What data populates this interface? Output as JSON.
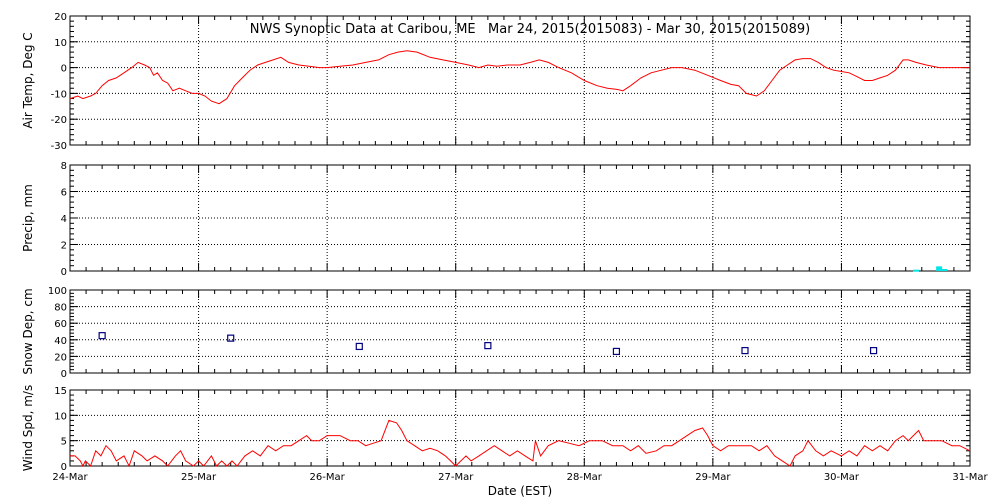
{
  "chart_data": {
    "type": "line",
    "title": "NWS Synoptic Data at Caribou, ME   Mar 24, 2015(2015083) - Mar 30, 2015(2015089)",
    "xlabel": "Date (EST)",
    "x_domain_days": [
      0,
      7
    ],
    "x_ticks": [
      "24-Mar",
      "25-Mar",
      "26-Mar",
      "27-Mar",
      "28-Mar",
      "29-Mar",
      "30-Mar",
      "31-Mar"
    ],
    "grid": true,
    "colors": {
      "temp": "#ff0000",
      "precip": "#00e5e5",
      "snow": "#000080",
      "wind": "#ff0000",
      "axis": "#000000"
    },
    "panels": [
      {
        "id": "air-temp",
        "ylabel": "Air Temp, Deg C",
        "ylim": [
          -30,
          20
        ],
        "yticks": [
          "20",
          "10",
          "0",
          "-10",
          "-20",
          "-30"
        ],
        "series": [
          {
            "type": "line",
            "values": [
              [
                0.0,
                -12
              ],
              [
                0.06,
                -11
              ],
              [
                0.1,
                -12
              ],
              [
                0.16,
                -11
              ],
              [
                0.2,
                -10
              ],
              [
                0.25,
                -7
              ],
              [
                0.3,
                -5
              ],
              [
                0.36,
                -4
              ],
              [
                0.42,
                -2
              ],
              [
                0.48,
                0
              ],
              [
                0.53,
                2
              ],
              [
                0.58,
                1
              ],
              [
                0.62,
                0
              ],
              [
                0.65,
                -3
              ],
              [
                0.68,
                -2
              ],
              [
                0.72,
                -5
              ],
              [
                0.76,
                -6
              ],
              [
                0.8,
                -9
              ],
              [
                0.85,
                -8
              ],
              [
                0.9,
                -9
              ],
              [
                0.95,
                -10
              ],
              [
                1.0,
                -10
              ],
              [
                1.05,
                -11
              ],
              [
                1.1,
                -13
              ],
              [
                1.16,
                -14
              ],
              [
                1.22,
                -12
              ],
              [
                1.28,
                -7
              ],
              [
                1.34,
                -4
              ],
              [
                1.4,
                -1
              ],
              [
                1.46,
                1
              ],
              [
                1.52,
                2
              ],
              [
                1.58,
                3
              ],
              [
                1.64,
                4
              ],
              [
                1.7,
                2
              ],
              [
                1.78,
                1
              ],
              [
                1.86,
                0.5
              ],
              [
                1.94,
                0
              ],
              [
                2.0,
                0
              ],
              [
                2.1,
                0.5
              ],
              [
                2.2,
                1
              ],
              [
                2.3,
                2
              ],
              [
                2.4,
                3
              ],
              [
                2.48,
                5
              ],
              [
                2.55,
                6
              ],
              [
                2.62,
                6.5
              ],
              [
                2.7,
                6
              ],
              [
                2.8,
                4
              ],
              [
                2.9,
                3
              ],
              [
                3.0,
                2
              ],
              [
                3.1,
                1
              ],
              [
                3.18,
                0
              ],
              [
                3.25,
                1
              ],
              [
                3.32,
                0.5
              ],
              [
                3.4,
                1
              ],
              [
                3.5,
                1
              ],
              [
                3.58,
                2
              ],
              [
                3.65,
                3
              ],
              [
                3.72,
                2
              ],
              [
                3.8,
                0
              ],
              [
                3.9,
                -2
              ],
              [
                4.0,
                -5
              ],
              [
                4.1,
                -7
              ],
              [
                4.18,
                -8
              ],
              [
                4.26,
                -8.5
              ],
              [
                4.3,
                -9
              ],
              [
                4.36,
                -7
              ],
              [
                4.44,
                -4
              ],
              [
                4.52,
                -2
              ],
              [
                4.6,
                -1
              ],
              [
                4.68,
                0
              ],
              [
                4.76,
                0
              ],
              [
                4.86,
                -1
              ],
              [
                4.96,
                -3
              ],
              [
                5.06,
                -5
              ],
              [
                5.14,
                -6.5
              ],
              [
                5.2,
                -7
              ],
              [
                5.26,
                -10
              ],
              [
                5.34,
                -11
              ],
              [
                5.4,
                -9
              ],
              [
                5.46,
                -5
              ],
              [
                5.52,
                -1
              ],
              [
                5.58,
                1
              ],
              [
                5.64,
                3
              ],
              [
                5.7,
                3.5
              ],
              [
                5.76,
                3.5
              ],
              [
                5.82,
                2
              ],
              [
                5.88,
                0
              ],
              [
                5.94,
                -1
              ],
              [
                6.0,
                -1.5
              ],
              [
                6.06,
                -2
              ],
              [
                6.12,
                -3.5
              ],
              [
                6.18,
                -5
              ],
              [
                6.24,
                -5
              ],
              [
                6.3,
                -4
              ],
              [
                6.36,
                -3
              ],
              [
                6.42,
                -1
              ],
              [
                6.48,
                3
              ],
              [
                6.52,
                3
              ],
              [
                6.58,
                2
              ],
              [
                6.66,
                1
              ],
              [
                6.76,
                0
              ],
              [
                6.86,
                0
              ],
              [
                7.0,
                0
              ]
            ]
          }
        ]
      },
      {
        "id": "precip",
        "ylabel": "Precip, mm",
        "ylim": [
          0,
          8
        ],
        "yticks": [
          "8",
          "6",
          "4",
          "2",
          "0"
        ],
        "series": [
          {
            "type": "bar",
            "values": [
              [
                6.58,
                0.1
              ],
              [
                6.76,
                0.35
              ],
              [
                6.8,
                0.15
              ]
            ]
          }
        ]
      },
      {
        "id": "snow-depth",
        "ylabel": "Snow Dep, cm",
        "ylim": [
          0,
          100
        ],
        "yticks": [
          "100",
          "80",
          "60",
          "40",
          "20",
          "0"
        ],
        "series": [
          {
            "type": "scatter",
            "values": [
              [
                0.25,
                45
              ],
              [
                1.25,
                42
              ],
              [
                2.25,
                32
              ],
              [
                3.25,
                33
              ],
              [
                4.25,
                26
              ],
              [
                5.25,
                27
              ],
              [
                6.25,
                27
              ]
            ]
          }
        ]
      },
      {
        "id": "wind-speed",
        "ylabel": "Wind Spd, m/s",
        "ylim": [
          0,
          15
        ],
        "yticks": [
          "15",
          "10",
          "5",
          "0"
        ],
        "series": [
          {
            "type": "line",
            "values": [
              [
                0.0,
                2
              ],
              [
                0.04,
                2
              ],
              [
                0.08,
                1
              ],
              [
                0.1,
                0
              ],
              [
                0.12,
                1
              ],
              [
                0.16,
                0
              ],
              [
                0.2,
                3
              ],
              [
                0.24,
                2
              ],
              [
                0.28,
                4
              ],
              [
                0.32,
                3
              ],
              [
                0.36,
                1
              ],
              [
                0.42,
                2
              ],
              [
                0.46,
                0
              ],
              [
                0.5,
                3
              ],
              [
                0.56,
                2
              ],
              [
                0.6,
                1
              ],
              [
                0.66,
                2
              ],
              [
                0.72,
                1
              ],
              [
                0.76,
                0
              ],
              [
                0.82,
                2
              ],
              [
                0.86,
                3
              ],
              [
                0.9,
                1
              ],
              [
                0.96,
                0
              ],
              [
                1.0,
                1
              ],
              [
                1.04,
                0
              ],
              [
                1.1,
                2
              ],
              [
                1.14,
                0
              ],
              [
                1.18,
                1
              ],
              [
                1.22,
                0
              ],
              [
                1.26,
                1
              ],
              [
                1.3,
                0
              ],
              [
                1.36,
                2
              ],
              [
                1.42,
                3
              ],
              [
                1.48,
                2
              ],
              [
                1.54,
                4
              ],
              [
                1.6,
                3
              ],
              [
                1.66,
                4
              ],
              [
                1.72,
                4
              ],
              [
                1.78,
                5
              ],
              [
                1.84,
                6
              ],
              [
                1.88,
                5
              ],
              [
                1.94,
                5
              ],
              [
                2.0,
                6
              ],
              [
                2.1,
                6
              ],
              [
                2.18,
                5
              ],
              [
                2.24,
                5
              ],
              [
                2.3,
                4
              ],
              [
                2.36,
                4.5
              ],
              [
                2.42,
                5
              ],
              [
                2.48,
                9
              ],
              [
                2.54,
                8.5
              ],
              [
                2.58,
                7
              ],
              [
                2.62,
                5
              ],
              [
                2.68,
                4
              ],
              [
                2.74,
                3
              ],
              [
                2.8,
                3.5
              ],
              [
                2.86,
                3
              ],
              [
                2.92,
                2
              ],
              [
                2.96,
                1
              ],
              [
                3.0,
                0
              ],
              [
                3.04,
                1
              ],
              [
                3.08,
                2
              ],
              [
                3.12,
                1
              ],
              [
                3.18,
                2
              ],
              [
                3.24,
                3
              ],
              [
                3.3,
                4
              ],
              [
                3.36,
                3
              ],
              [
                3.42,
                2
              ],
              [
                3.48,
                3
              ],
              [
                3.54,
                2
              ],
              [
                3.6,
                1
              ],
              [
                3.62,
                5
              ],
              [
                3.66,
                2
              ],
              [
                3.72,
                4
              ],
              [
                3.8,
                5
              ],
              [
                3.88,
                4.5
              ],
              [
                3.96,
                4
              ],
              [
                4.04,
                5
              ],
              [
                4.14,
                5
              ],
              [
                4.22,
                4
              ],
              [
                4.3,
                4
              ],
              [
                4.36,
                3
              ],
              [
                4.42,
                4
              ],
              [
                4.48,
                2.5
              ],
              [
                4.56,
                3
              ],
              [
                4.62,
                4
              ],
              [
                4.68,
                4
              ],
              [
                4.74,
                5
              ],
              [
                4.8,
                6
              ],
              [
                4.86,
                7
              ],
              [
                4.92,
                7.5
              ],
              [
                4.96,
                6
              ],
              [
                5.0,
                4
              ],
              [
                5.06,
                3
              ],
              [
                5.12,
                4
              ],
              [
                5.2,
                4
              ],
              [
                5.3,
                4
              ],
              [
                5.36,
                3
              ],
              [
                5.42,
                4
              ],
              [
                5.48,
                2
              ],
              [
                5.54,
                1
              ],
              [
                5.6,
                0
              ],
              [
                5.64,
                2
              ],
              [
                5.7,
                3
              ],
              [
                5.74,
                5
              ],
              [
                5.8,
                3
              ],
              [
                5.86,
                2
              ],
              [
                5.92,
                3
              ],
              [
                6.0,
                2
              ],
              [
                6.06,
                3
              ],
              [
                6.12,
                2
              ],
              [
                6.18,
                4
              ],
              [
                6.24,
                3
              ],
              [
                6.3,
                4
              ],
              [
                6.36,
                3
              ],
              [
                6.42,
                5
              ],
              [
                6.48,
                6
              ],
              [
                6.52,
                5
              ],
              [
                6.56,
                6
              ],
              [
                6.6,
                7
              ],
              [
                6.64,
                5
              ],
              [
                6.7,
                5
              ],
              [
                6.78,
                5
              ],
              [
                6.86,
                4
              ],
              [
                6.92,
                4
              ],
              [
                7.0,
                3
              ]
            ]
          }
        ]
      }
    ]
  }
}
